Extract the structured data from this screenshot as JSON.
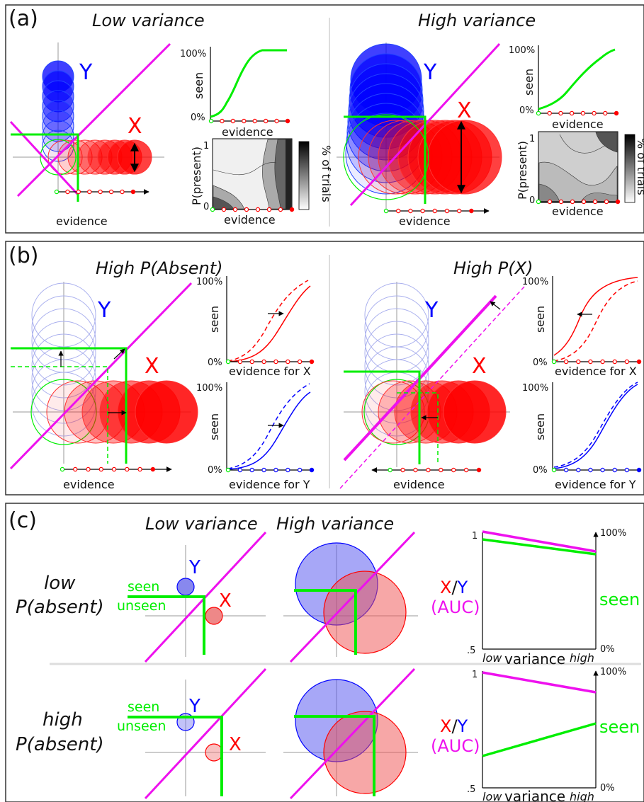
{
  "colors": {
    "x": "#ff0000",
    "y": "#0000ff",
    "criterion": "#00ee00",
    "diagonal": "#ee11ee",
    "frame": "#333333",
    "axis": "#888888"
  },
  "panel_a": {
    "label": "(a)",
    "left": {
      "title": "Low variance",
      "y_label": "Y",
      "x_label": "X",
      "axis_label": "evidence",
      "seen_plot": {
        "ylabel": "seen",
        "top_tick": "100%",
        "bottom_tick": "0%",
        "xlabel": "evidence"
      },
      "heatmap": {
        "ylabel": "P(present)",
        "tick_top": "1",
        "tick_bottom": "0",
        "xlabel": "evidence",
        "colorbar_label": "% of trials"
      }
    },
    "right": {
      "title": "High variance",
      "y_label": "Y",
      "x_label": "X",
      "axis_label": "evidence",
      "seen_plot": {
        "ylabel": "seen",
        "top_tick": "100%",
        "bottom_tick": "0%",
        "xlabel": "evidence"
      },
      "heatmap": {
        "ylabel": "P(present)",
        "tick_top": "1",
        "tick_bottom": "0",
        "xlabel": "evidence",
        "colorbar_label": "% of trials"
      }
    }
  },
  "panel_b": {
    "label": "(b)",
    "left": {
      "title": "High P(Absent)",
      "y_label": "Y",
      "x_label": "X",
      "axis_label": "evidence",
      "plot_top": {
        "ylabel": "seen",
        "top_tick": "100%",
        "bottom_tick": "0%",
        "xlabel": "evidence for X"
      },
      "plot_bottom": {
        "ylabel": "seen",
        "top_tick": "100%",
        "bottom_tick": "0%",
        "xlabel": "evidence for Y"
      }
    },
    "right": {
      "title": "High P(X)",
      "y_label": "Y",
      "x_label": "X",
      "axis_label": "evidence",
      "plot_top": {
        "ylabel": "seen",
        "top_tick": "100%",
        "bottom_tick": "0%",
        "xlabel": "evidence for X"
      },
      "plot_bottom": {
        "ylabel": "seen",
        "top_tick": "100%",
        "bottom_tick": "0%",
        "xlabel": "evidence for Y"
      }
    }
  },
  "panel_c": {
    "label": "(c)",
    "col_low": "Low variance",
    "col_high": "High variance",
    "rows": [
      {
        "label_line1": "low",
        "label_line2": "P(absent)",
        "seen": "seen",
        "unseen": "unseen",
        "y_label": "Y",
        "x_label": "X",
        "plot": {
          "left_top": "1",
          "left_bottom": ".5",
          "right_top": "100%",
          "right_bottom": "0%",
          "xy_x": "X",
          "xy_slash": "/",
          "xy_y": "Y",
          "auc": "(AUC)",
          "seen_label": "seen",
          "x_low": "low",
          "x_high": "high",
          "xlabel": "variance"
        }
      },
      {
        "label_line1": "high",
        "label_line2": "P(absent)",
        "seen": "seen",
        "unseen": "unseen",
        "y_label": "Y",
        "x_label": "X",
        "plot": {
          "left_top": "1",
          "left_bottom": ".5",
          "right_top": "100%",
          "right_bottom": "0%",
          "xy_x": "X",
          "xy_slash": "/",
          "xy_y": "Y",
          "auc": "(AUC)",
          "seen_label": "seen",
          "x_low": "low",
          "x_high": "high",
          "xlabel": "variance"
        }
      }
    ]
  }
}
